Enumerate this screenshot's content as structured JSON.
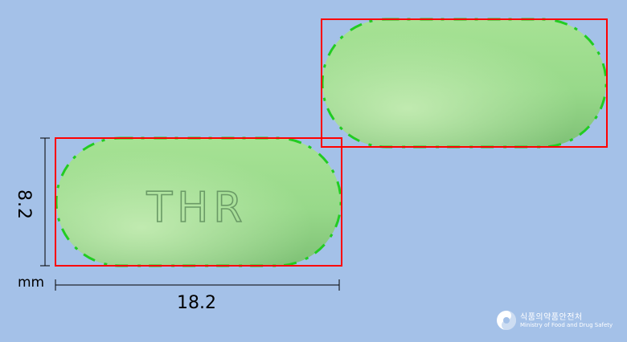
{
  "background_color": "#a4c1e8",
  "pill_color": "#98d98a",
  "bbox_color": "#ff0000",
  "contour_color": "#22cc22",
  "imprint_text": "THR",
  "dimensions": {
    "width": "18.2",
    "height": "8.2",
    "unit": "mm"
  },
  "logo": {
    "korean_name": "식품의약품안전처",
    "english_name": "Ministry of Food and Drug Safety"
  }
}
